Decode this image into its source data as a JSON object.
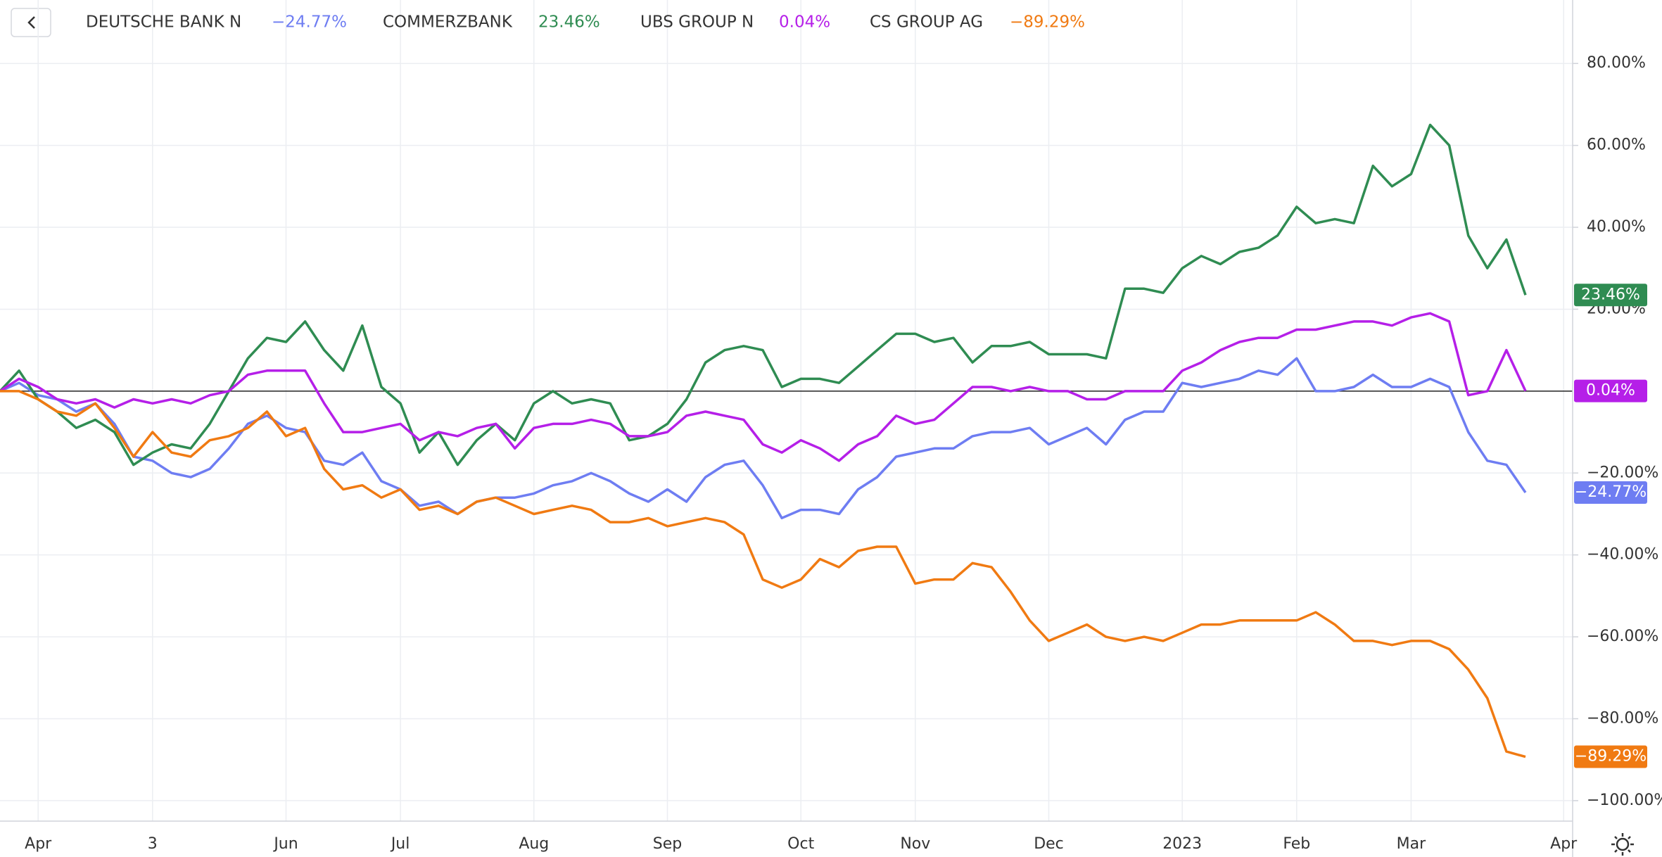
{
  "chart_data": {
    "type": "line",
    "categories": [
      null,
      null,
      "Apr",
      null,
      null,
      null,
      null,
      null,
      "3",
      null,
      null,
      null,
      null,
      null,
      null,
      "Jun",
      null,
      null,
      null,
      null,
      null,
      "Jul",
      null,
      null,
      null,
      null,
      null,
      null,
      "Aug",
      null,
      null,
      null,
      null,
      null,
      null,
      "Sep",
      null,
      null,
      null,
      null,
      null,
      null,
      "Oct",
      null,
      null,
      null,
      null,
      null,
      "Nov",
      null,
      null,
      null,
      null,
      null,
      null,
      "Dec",
      null,
      null,
      null,
      null,
      null,
      null,
      "2023",
      null,
      null,
      null,
      null,
      null,
      "Feb",
      null,
      null,
      null,
      null,
      null,
      "Mar",
      null,
      null,
      null,
      null,
      null,
      null,
      null,
      "Apr"
    ],
    "series": [
      {
        "name": "DEUTSCHE BANK N",
        "color": "#6e7df2",
        "value_label": "−24.77%",
        "values": [
          0,
          2,
          -1,
          -2,
          -5,
          -3,
          -8,
          -16,
          -17,
          -20,
          -21,
          -19,
          -14,
          -8,
          -6,
          -9,
          -10,
          -17,
          -18,
          -15,
          -22,
          -24,
          -28,
          -27,
          -30,
          -27,
          -26,
          -26,
          -25,
          -23,
          -22,
          -20,
          -22,
          -25,
          -27,
          -24,
          -27,
          -21,
          -18,
          -17,
          -23,
          -31,
          -29,
          -29,
          -30,
          -24,
          -21,
          -16,
          -15,
          -14,
          -14,
          -11,
          -10,
          -10,
          -9,
          -13,
          -11,
          -9,
          -13,
          -7,
          -5,
          -5,
          2,
          1,
          2,
          3,
          5,
          4,
          8,
          0,
          0,
          1,
          4,
          1,
          1,
          3,
          1,
          -10,
          -17,
          -18,
          -24.77,
          null,
          null
        ]
      },
      {
        "name": "COMMERZBANK",
        "color": "#2f8c52",
        "value_label": "23.46%",
        "values": [
          0,
          5,
          -2,
          -5,
          -9,
          -7,
          -10,
          -18,
          -15,
          -13,
          -14,
          -8,
          0,
          8,
          13,
          12,
          17,
          10,
          5,
          16,
          1,
          -3,
          -15,
          -10,
          -18,
          -12,
          -8,
          -12,
          -3,
          0,
          -3,
          -2,
          -3,
          -12,
          -11,
          -8,
          -2,
          7,
          10,
          11,
          10,
          1,
          3,
          3,
          2,
          6,
          10,
          14,
          14,
          12,
          13,
          7,
          11,
          11,
          12,
          9,
          9,
          9,
          8,
          25,
          25,
          24,
          30,
          33,
          31,
          34,
          35,
          38,
          45,
          41,
          42,
          41,
          55,
          50,
          53,
          65,
          60,
          38,
          30,
          37,
          23.46,
          null,
          null
        ]
      },
      {
        "name": "UBS GROUP N",
        "color": "#b51fe8",
        "value_label": "0.04%",
        "values": [
          0,
          3,
          1,
          -2,
          -3,
          -2,
          -4,
          -2,
          -3,
          -2,
          -3,
          -1,
          0,
          4,
          5,
          5,
          5,
          -3,
          -10,
          -10,
          -9,
          -8,
          -12,
          -10,
          -11,
          -9,
          -8,
          -14,
          -9,
          -8,
          -8,
          -7,
          -8,
          -11,
          -11,
          -10,
          -6,
          -5,
          -6,
          -7,
          -13,
          -15,
          -12,
          -14,
          -17,
          -13,
          -11,
          -6,
          -8,
          -7,
          -3,
          1,
          1,
          0,
          1,
          0,
          0,
          -2,
          -2,
          0,
          0,
          0,
          5,
          7,
          10,
          12,
          13,
          13,
          15,
          15,
          16,
          17,
          17,
          16,
          18,
          19,
          17,
          -1,
          0,
          10,
          0.04,
          null,
          null
        ]
      },
      {
        "name": "CS GROUP AG",
        "color": "#f07a12",
        "value_label": "−89.29%",
        "values": [
          0,
          0,
          -2,
          -5,
          -6,
          -3,
          -9,
          -16,
          -10,
          -15,
          -16,
          -12,
          -11,
          -9,
          -5,
          -11,
          -9,
          -19,
          -24,
          -23,
          -26,
          -24,
          -29,
          -28,
          -30,
          -27,
          -26,
          -28,
          -30,
          -29,
          -28,
          -29,
          -32,
          -32,
          -31,
          -33,
          -32,
          -31,
          -32,
          -35,
          -46,
          -48,
          -46,
          -41,
          -43,
          -39,
          -38,
          -38,
          -47,
          -46,
          -46,
          -42,
          -43,
          -49,
          -56,
          -61,
          -59,
          -57,
          -60,
          -61,
          -60,
          -61,
          -59,
          -57,
          -57,
          -56,
          -56,
          -56,
          -56,
          -54,
          -57,
          -61,
          -61,
          -62,
          -61,
          -61,
          -63,
          -68,
          -75,
          -88,
          -89.29,
          null,
          null
        ]
      }
    ],
    "ylim": [
      -105,
      95.5
    ],
    "yticks": [
      {
        "value": 80,
        "label": "80.00%"
      },
      {
        "value": 60,
        "label": "60.00%"
      },
      {
        "value": 40,
        "label": "40.00%"
      },
      {
        "value": 20,
        "label": "20.00%"
      },
      {
        "value": -20,
        "label": "−20.00%"
      },
      {
        "value": -40,
        "label": "−40.00%"
      },
      {
        "value": -60,
        "label": "−60.00%"
      },
      {
        "value": -80,
        "label": "−80.00%"
      },
      {
        "value": -100,
        "label": "−100.00%"
      }
    ],
    "grid": true
  }
}
